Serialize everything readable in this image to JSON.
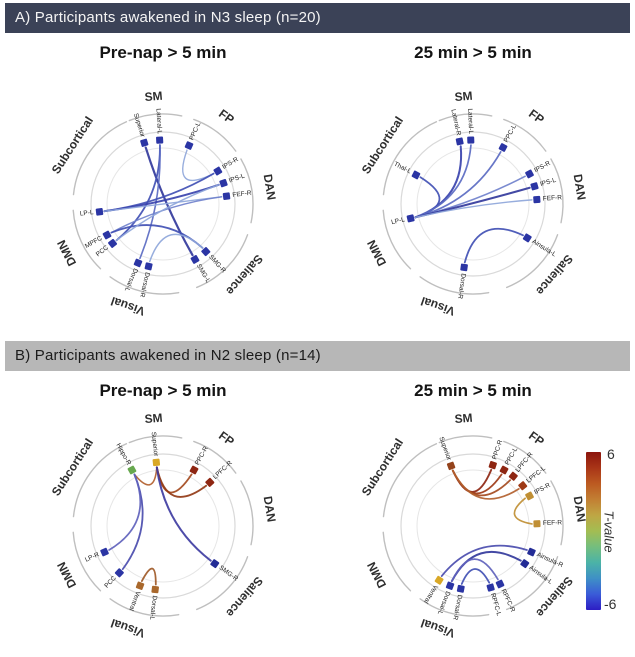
{
  "panel_a": {
    "header": "A) Participants awakened in N3 sleep (n=20)"
  },
  "panel_b": {
    "header": "B) Participants awakened in N2 sleep (n=14)"
  },
  "groups": [
    {
      "name": "SM",
      "arc_start": -22,
      "arc_end": 12,
      "label_angle": -5
    },
    {
      "name": "FP",
      "arc_start": 20,
      "arc_end": 54,
      "label_angle": 36
    },
    {
      "name": "DAN",
      "arc_start": 60,
      "arc_end": 102,
      "label_angle": 81
    },
    {
      "name": "Salience",
      "arc_start": 110,
      "arc_end": 158,
      "label_angle": 131
    },
    {
      "name": "Visual",
      "arc_start": 170,
      "arc_end": 216,
      "label_angle": 199
    },
    {
      "name": "DMN",
      "arc_start": 224,
      "arc_end": 266,
      "label_angle": 243
    },
    {
      "name": "Subcortical",
      "arc_start": 276,
      "arc_end": 336,
      "label_angle": 303
    }
  ],
  "chart_data": [
    {
      "id": "a_left",
      "panel": "A",
      "type": "chord-connectivity-circle",
      "title": "Pre-nap > 5 min",
      "nodes": [
        {
          "id": "Superior",
          "angle": 343,
          "color": "#2b35a4"
        },
        {
          "id": "Lateral-L",
          "angle": 357,
          "color": "#2b35a4"
        },
        {
          "id": "PPC-L",
          "angle": 24,
          "color": "#2b35a4"
        },
        {
          "id": "IPS-R",
          "angle": 59,
          "color": "#2b35a4"
        },
        {
          "id": "IPS-L",
          "angle": 71,
          "color": "#2b35a4"
        },
        {
          "id": "FEF-R",
          "angle": 83,
          "color": "#2b35a4"
        },
        {
          "id": "SMG-R",
          "angle": 138,
          "color": "#2b35a4"
        },
        {
          "id": "SMG-L",
          "angle": 150,
          "color": "#2b35a4"
        },
        {
          "id": "Dorsal-R",
          "angle": 193,
          "color": "#2b35a4"
        },
        {
          "id": "Dorsal-L",
          "angle": 203,
          "color": "#2b35a4"
        },
        {
          "id": "PCC",
          "angle": 232,
          "color": "#2b35a4"
        },
        {
          "id": "MPFC",
          "angle": 241,
          "color": "#2b35a4"
        },
        {
          "id": "LP-L",
          "angle": 263,
          "color": "#2b35a4"
        }
      ],
      "edges": [
        {
          "from": "Superior",
          "to": "SMG-L",
          "t": -6,
          "color": "#33399c",
          "w": 2.2
        },
        {
          "from": "Lateral-L",
          "to": "PCC",
          "t": -5,
          "color": "#4150b4",
          "w": 1.8
        },
        {
          "from": "Lateral-L",
          "to": "Dorsal-L",
          "t": -4,
          "color": "#5a6ac2",
          "w": 1.6
        },
        {
          "from": "PPC-L",
          "to": "IPS-R",
          "t": -3,
          "color": "#8ea6da",
          "w": 1.4
        },
        {
          "from": "LP-L",
          "to": "IPS-R",
          "t": -5,
          "color": "#4150b4",
          "w": 1.8
        },
        {
          "from": "LP-L",
          "to": "IPS-L",
          "t": -5,
          "color": "#3a43ae",
          "w": 2.0
        },
        {
          "from": "LP-L",
          "to": "FEF-R",
          "t": -3,
          "color": "#8ea6da",
          "w": 1.4
        },
        {
          "from": "MPFC",
          "to": "FEF-R",
          "t": -4,
          "color": "#7081cc",
          "w": 1.5
        },
        {
          "from": "MPFC",
          "to": "SMG-R",
          "t": -5,
          "color": "#4150b4",
          "w": 1.8
        },
        {
          "from": "PCC",
          "to": "IPS-L",
          "t": -3,
          "color": "#8ea6da",
          "w": 1.4
        },
        {
          "from": "Dorsal-R",
          "to": "SMG-R",
          "t": -3,
          "color": "#8ea6da",
          "w": 1.5
        }
      ]
    },
    {
      "id": "a_right",
      "panel": "A",
      "type": "chord-connectivity-circle",
      "title": "25 min > 5 min",
      "nodes": [
        {
          "id": "Lateral-R",
          "angle": 348,
          "color": "#2b35a4"
        },
        {
          "id": "Lateral-L",
          "angle": 358,
          "color": "#2b35a4"
        },
        {
          "id": "PPC-L",
          "angle": 28,
          "color": "#2b35a4"
        },
        {
          "id": "IPS-R",
          "angle": 62,
          "color": "#2b35a4"
        },
        {
          "id": "IPS-L",
          "angle": 74,
          "color": "#2b35a4"
        },
        {
          "id": "FEF-R",
          "angle": 86,
          "color": "#2b35a4"
        },
        {
          "id": "Ainsula-L",
          "angle": 122,
          "color": "#2b35a4"
        },
        {
          "id": "Dorsal-R",
          "angle": 188,
          "color": "#2b35a4"
        },
        {
          "id": "LP-L",
          "angle": 257,
          "color": "#2b35a4"
        },
        {
          "id": "Thal-L",
          "angle": 297,
          "color": "#2b35a4"
        }
      ],
      "edges": [
        {
          "from": "Thal-L",
          "to": "LP-L",
          "t": -5,
          "color": "#4150b4",
          "w": 1.8
        },
        {
          "from": "LP-L",
          "to": "Lateral-R",
          "t": -5,
          "color": "#3a43ae",
          "w": 2.0
        },
        {
          "from": "LP-L",
          "to": "Lateral-L",
          "t": -4,
          "color": "#5a6ac2",
          "w": 1.7
        },
        {
          "from": "LP-L",
          "to": "PPC-L",
          "t": -4,
          "color": "#5a6ac2",
          "w": 1.7
        },
        {
          "from": "LP-L",
          "to": "IPS-R",
          "t": -4,
          "color": "#7081cc",
          "w": 1.6
        },
        {
          "from": "LP-L",
          "to": "IPS-L",
          "t": -6,
          "color": "#33399c",
          "w": 2.0
        },
        {
          "from": "LP-L",
          "to": "FEF-R",
          "t": -3,
          "color": "#8ea6da",
          "w": 1.4
        },
        {
          "from": "Dorsal-R",
          "to": "Ainsula-L",
          "t": -5,
          "color": "#4150b4",
          "w": 1.8
        }
      ]
    },
    {
      "id": "b_left",
      "panel": "B",
      "type": "chord-connectivity-circle",
      "title": "Pre-nap > 5 min",
      "nodes": [
        {
          "id": "Superior",
          "angle": 354,
          "color": "#d9a826"
        },
        {
          "id": "Hippo-R",
          "angle": 331,
          "color": "#67a84e"
        },
        {
          "id": "PPC-R",
          "angle": 29,
          "color": "#8e2612"
        },
        {
          "id": "LPFC-R",
          "angle": 47,
          "color": "#8e2612"
        },
        {
          "id": "SMG-R",
          "angle": 126,
          "color": "#232c96"
        },
        {
          "id": "Dorsal-L",
          "angle": 187,
          "color": "#a9682c"
        },
        {
          "id": "Ventral",
          "angle": 201,
          "color": "#a9682c"
        },
        {
          "id": "PCC",
          "angle": 223,
          "color": "#2b35a4"
        },
        {
          "id": "LP-R",
          "angle": 246,
          "color": "#2b35a4"
        }
      ],
      "edges": [
        {
          "from": "Hippo-R",
          "to": "Superior",
          "t": 4,
          "color": "#b2602e",
          "w": 1.6
        },
        {
          "from": "Superior",
          "to": "PPC-R",
          "t": 5,
          "color": "#a44a1e",
          "w": 1.8
        },
        {
          "from": "Superior",
          "to": "LPFC-R",
          "t": 6,
          "color": "#933a16",
          "w": 1.9
        },
        {
          "from": "Superior",
          "to": "SMG-R",
          "t": -5,
          "color": "#3f3da2",
          "w": 2.0
        },
        {
          "from": "Hippo-R",
          "to": "PCC",
          "t": -5,
          "color": "#4a4cae",
          "w": 1.8
        },
        {
          "from": "Hippo-R",
          "to": "LP-R",
          "t": -4,
          "color": "#5f62bc",
          "w": 1.7
        },
        {
          "from": "Ventral",
          "to": "Dorsal-L",
          "t": 4,
          "color": "#a05a28",
          "w": 1.8
        }
      ]
    },
    {
      "id": "b_right",
      "panel": "B",
      "type": "chord-connectivity-circle",
      "title": "25 min > 5 min",
      "nodes": [
        {
          "id": "Superior",
          "angle": 340,
          "color": "#94431c"
        },
        {
          "id": "PPC-R",
          "angle": 18,
          "color": "#8e2612"
        },
        {
          "id": "PPC-L",
          "angle": 29,
          "color": "#8e2612"
        },
        {
          "id": "LPFC-R",
          "angle": 39,
          "color": "#8e2612"
        },
        {
          "id": "LPFC-L",
          "angle": 51,
          "color": "#9e3a16"
        },
        {
          "id": "IPS-R",
          "angle": 62,
          "color": "#c08f34"
        },
        {
          "id": "FEF-R",
          "angle": 88,
          "color": "#c08f34"
        },
        {
          "id": "Ainsula-R",
          "angle": 114,
          "color": "#232c96"
        },
        {
          "id": "Ainsula-L",
          "angle": 126,
          "color": "#232c96"
        },
        {
          "id": "RPFC-R",
          "angle": 155,
          "color": "#2b35a4"
        },
        {
          "id": "RPFC-L",
          "angle": 164,
          "color": "#2b35a4"
        },
        {
          "id": "Dorsal-R",
          "angle": 191,
          "color": "#2b35a4"
        },
        {
          "id": "Dorsal-L",
          "angle": 201,
          "color": "#2b35a4"
        },
        {
          "id": "Ventral",
          "angle": 212,
          "color": "#d9a826"
        }
      ],
      "edges": [
        {
          "from": "Superior",
          "to": "PPC-R",
          "t": 6,
          "color": "#8e2612",
          "w": 1.9
        },
        {
          "from": "Superior",
          "to": "PPC-L",
          "t": 5,
          "color": "#9e3a16",
          "w": 1.8
        },
        {
          "from": "Superior",
          "to": "LPFC-R",
          "t": 5,
          "color": "#a44a1e",
          "w": 1.8
        },
        {
          "from": "Superior",
          "to": "LPFC-L",
          "t": 4,
          "color": "#b2602e",
          "w": 1.7
        },
        {
          "from": "IPS-R",
          "to": "FEF-R",
          "t": 3,
          "color": "#c08f34",
          "w": 1.7
        },
        {
          "from": "Ventral",
          "to": "Ainsula-R",
          "t": -4,
          "color": "#4a4cae",
          "w": 1.8
        },
        {
          "from": "Dorsal-L",
          "to": "Ainsula-L",
          "t": -6,
          "color": "#33399c",
          "w": 2.0
        },
        {
          "from": "Dorsal-L",
          "to": "RPFC-R",
          "t": -4,
          "color": "#5f62bc",
          "w": 1.7
        },
        {
          "from": "Dorsal-R",
          "to": "RPFC-L",
          "t": -5,
          "color": "#4150b4",
          "w": 1.8
        }
      ]
    }
  ],
  "colorbar": {
    "label": "T-value",
    "max": "6",
    "min": "-6",
    "gradient": [
      "#8c150d",
      "#a93517",
      "#bc5a21",
      "#c27f33",
      "#bfa644",
      "#a3bd52",
      "#74be7e",
      "#4bb3a7",
      "#3f90c6",
      "#3a5bd8",
      "#2d1dc4"
    ]
  }
}
